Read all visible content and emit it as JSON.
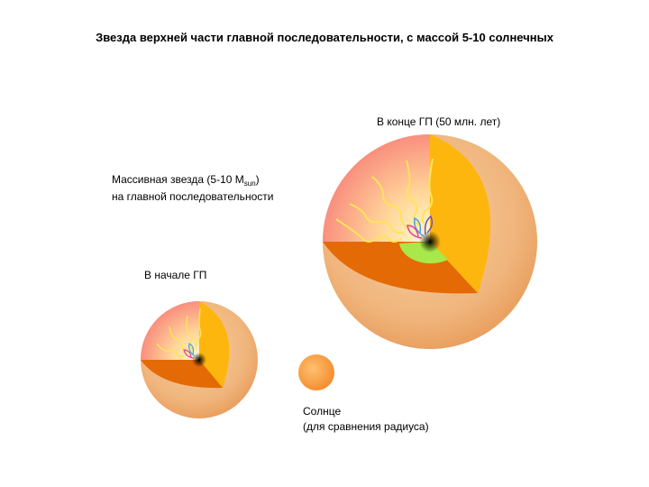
{
  "title": "Звезда верхней части главной последовательности, с массой 5-10 солнечных",
  "late_label": "В конце ГП (50 млн. лет)",
  "massive_star": {
    "line1": "Массивная  звезда (5-10 M",
    "subscript": "sun",
    "line1_end": ")",
    "line2": "на главной последовательности"
  },
  "early_label": "В начале ГП",
  "sun": {
    "line1": "Солнце",
    "line2": "(для сравнения радиуса)"
  }
}
